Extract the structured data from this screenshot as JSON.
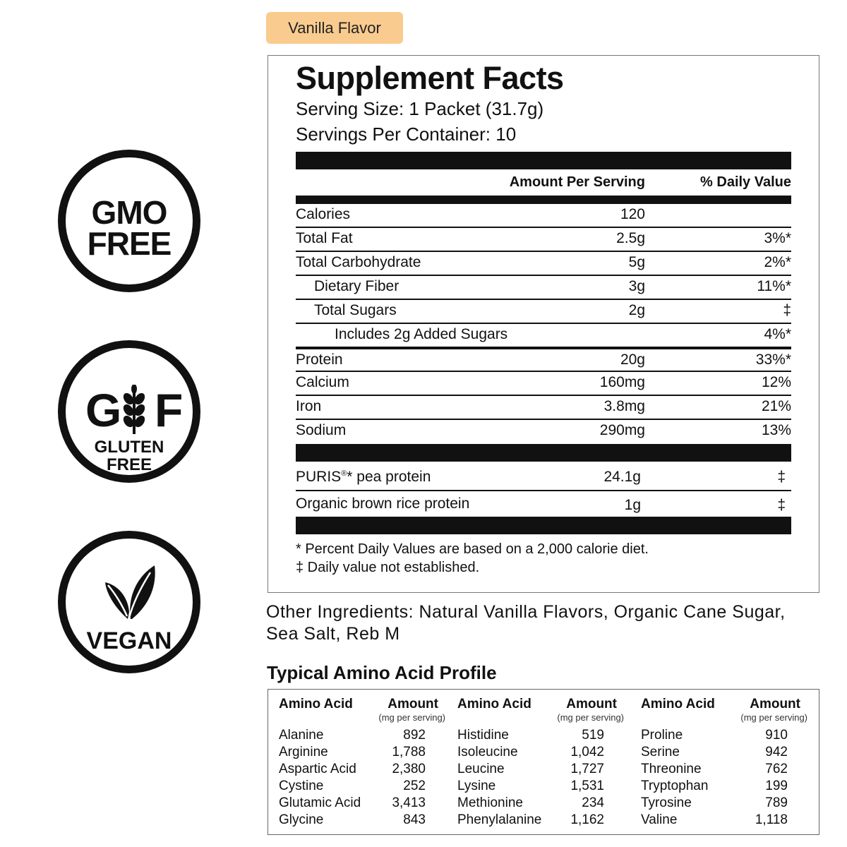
{
  "badges": {
    "gmo": {
      "line1": "GMO",
      "line2": "FREE"
    },
    "gluten": {
      "g": "G",
      "f": "F",
      "line1": "GLUTEN",
      "line2": "FREE"
    },
    "vegan": {
      "label": "VEGAN"
    }
  },
  "flavor": "Vanilla Flavor",
  "facts": {
    "title": "Supplement Facts",
    "serving_size": "Serving Size: 1 Packet (31.7g)",
    "servings_per_container": "Servings Per Container: 10",
    "col_amount": "Amount Per Serving",
    "col_dv": "% Daily Value",
    "rows": [
      {
        "name": "Calories",
        "amount": "120",
        "dv": ""
      },
      {
        "name": "Total Fat",
        "amount": "2.5g",
        "dv": "3%*"
      },
      {
        "name": "Total Carbohydrate",
        "amount": "5g",
        "dv": "2%*"
      },
      {
        "name": "Dietary Fiber",
        "amount": "3g",
        "dv": "11%*"
      },
      {
        "name": "Total Sugars",
        "amount": "2g",
        "dv": "‡"
      },
      {
        "name": "Includes 2g Added Sugars",
        "amount": "",
        "dv": "4%*"
      },
      {
        "name": "Protein",
        "amount": "20g",
        "dv": "33%*"
      },
      {
        "name": "Calcium",
        "amount": "160mg",
        "dv": "12%"
      },
      {
        "name": "Iron",
        "amount": "3.8mg",
        "dv": "21%"
      },
      {
        "name": "Sodium",
        "amount": "290mg",
        "dv": "13%"
      }
    ],
    "blend": [
      {
        "name": "PURIS",
        "mark": "®",
        "suffix": "* pea protein",
        "amount": "24.1g",
        "dv": "‡"
      },
      {
        "name": "Organic brown rice protein",
        "amount": "1g",
        "dv": "‡"
      }
    ],
    "footnote1": "* Percent Daily Values are based on a 2,000 calorie diet.",
    "footnote2": "‡ Daily value not established."
  },
  "other_ingredients": "Other Ingredients: Natural Vanilla Flavors, Organic Cane Sugar, Sea Salt, Reb M",
  "amino": {
    "title": "Typical Amino Acid Profile",
    "header_name": "Amino Acid",
    "header_amount": "Amount",
    "header_sub": "(mg per serving)",
    "columns": [
      [
        {
          "name": "Alanine",
          "value": "892"
        },
        {
          "name": "Arginine",
          "value": "1,788"
        },
        {
          "name": "Aspartic Acid",
          "value": "2,380"
        },
        {
          "name": "Cystine",
          "value": "252"
        },
        {
          "name": "Glutamic Acid",
          "value": "3,413"
        },
        {
          "name": "Glycine",
          "value": "843"
        }
      ],
      [
        {
          "name": "Histidine",
          "value": "519"
        },
        {
          "name": "Isoleucine",
          "value": "1,042"
        },
        {
          "name": "Leucine",
          "value": "1,727"
        },
        {
          "name": "Lysine",
          "value": "1,531"
        },
        {
          "name": "Methionine",
          "value": "234"
        },
        {
          "name": "Phenylalanine",
          "value": "1,162"
        }
      ],
      [
        {
          "name": "Proline",
          "value": "910"
        },
        {
          "name": "Serine",
          "value": "942"
        },
        {
          "name": "Threonine",
          "value": "762"
        },
        {
          "name": "Tryptophan",
          "value": "199"
        },
        {
          "name": "Tyrosine",
          "value": "789"
        },
        {
          "name": "Valine",
          "value": "1,118"
        }
      ]
    ]
  }
}
